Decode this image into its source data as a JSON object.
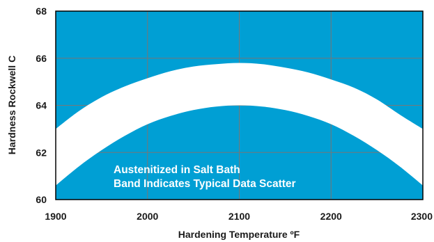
{
  "chart_data": {
    "type": "area",
    "title": "",
    "xlabel": "Hardening Temperature ºF",
    "ylabel": "Hardness Rockwell C",
    "xlim": [
      1900,
      2300
    ],
    "ylim": [
      60,
      68
    ],
    "xticks": [
      1900,
      2000,
      2100,
      2200,
      2300
    ],
    "yticks": [
      60,
      62,
      64,
      66,
      68
    ],
    "grid": true,
    "legend": "none",
    "annotations": [
      "Austenitized in Salt Bath",
      "Band Indicates Typical Data Scatter"
    ],
    "series": [
      {
        "kind": "band",
        "x": [
          1900,
          1925,
          1950,
          1975,
          2000,
          2025,
          2050,
          2075,
          2100,
          2125,
          2150,
          2175,
          2200,
          2225,
          2250,
          2275,
          2300
        ],
        "lower": [
          60.6,
          61.4,
          62.1,
          62.7,
          63.2,
          63.55,
          63.8,
          63.95,
          64.0,
          63.95,
          63.8,
          63.55,
          63.2,
          62.7,
          62.1,
          61.4,
          60.6
        ],
        "upper": [
          63.0,
          63.75,
          64.35,
          64.8,
          65.15,
          65.45,
          65.65,
          65.75,
          65.8,
          65.75,
          65.6,
          65.4,
          65.1,
          64.75,
          64.25,
          63.6,
          63.0
        ]
      }
    ],
    "colors": {
      "plot_background": "#009fd4",
      "band": "#ffffff",
      "grid": "#777777",
      "frame": "#000000"
    }
  }
}
